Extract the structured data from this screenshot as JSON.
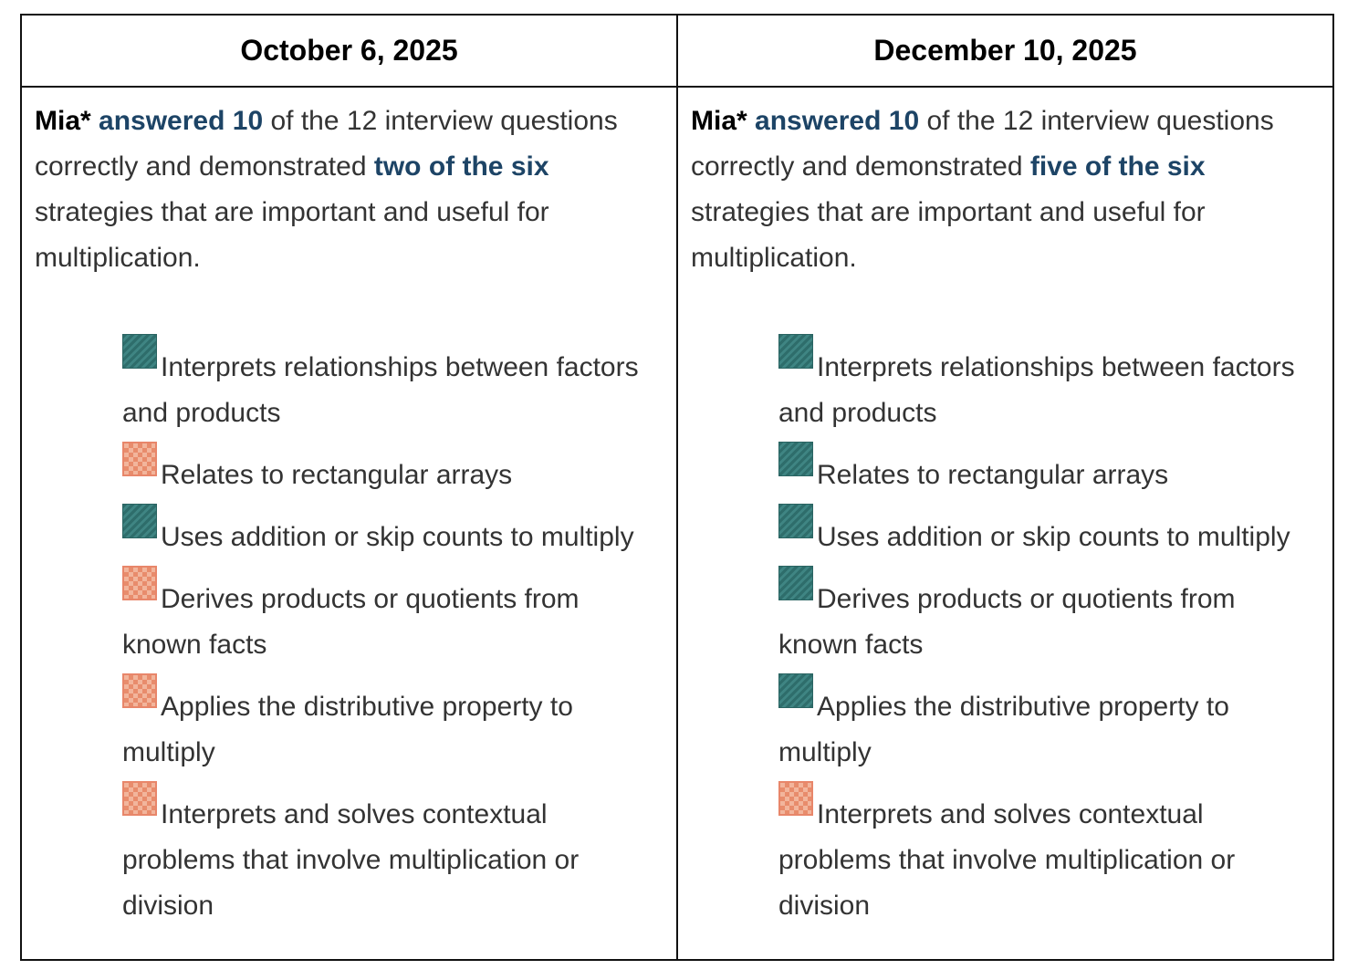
{
  "table": {
    "headers": [
      "October 6, 2025",
      "December 10, 2025"
    ],
    "columns": [
      {
        "summary": [
          {
            "text": "Mia*",
            "style": "bold"
          },
          {
            "text": "answered 10",
            "style": "highlight"
          },
          {
            "text": "of the 12 interview questions correctly and demonstrated",
            "style": "plain"
          },
          {
            "text": "two of the six",
            "style": "highlight"
          },
          {
            "text": "strategies that are important and useful for multiplication.",
            "style": "plain"
          }
        ],
        "strategies": [
          {
            "label": "Interprets relationships between factors and products",
            "demonstrated": true
          },
          {
            "label": "Relates to rectangular arrays",
            "demonstrated": false
          },
          {
            "label": "Uses addition or skip counts to multiply",
            "demonstrated": true
          },
          {
            "label": "Derives products or quotients from known facts",
            "demonstrated": false
          },
          {
            "label": "Applies the distributive property to multiply",
            "demonstrated": false
          },
          {
            "label": "Interprets and solves contextual problems that involve multiplication or division",
            "demonstrated": false
          }
        ]
      },
      {
        "summary": [
          {
            "text": "Mia*",
            "style": "bold"
          },
          {
            "text": "answered 10",
            "style": "highlight"
          },
          {
            "text": "of the 12 interview questions correctly and demonstrated",
            "style": "plain"
          },
          {
            "text": "five of the six",
            "style": "highlight"
          },
          {
            "text": "strategies that are important and useful for multiplication.",
            "style": "plain"
          }
        ],
        "strategies": [
          {
            "label": "Interprets relationships between factors and products",
            "demonstrated": true
          },
          {
            "label": "Relates to rectangular arrays",
            "demonstrated": true
          },
          {
            "label": "Uses addition or skip counts to multiply",
            "demonstrated": true
          },
          {
            "label": "Derives products or quotients from known facts",
            "demonstrated": true
          },
          {
            "label": "Applies the distributive property to multiply",
            "demonstrated": true
          },
          {
            "label": "Interprets and solves contextual problems that involve multiplication or division",
            "demonstrated": false
          }
        ]
      }
    ]
  }
}
